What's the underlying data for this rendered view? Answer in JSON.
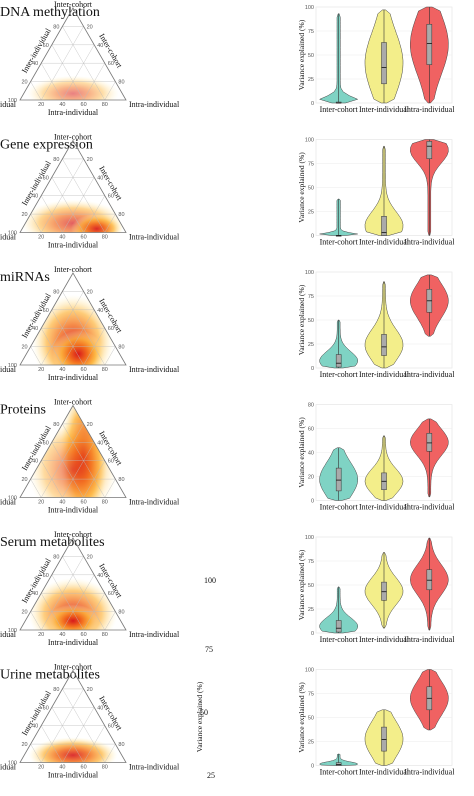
{
  "figure": {
    "panels": [
      {
        "title": "DNA methylation"
      },
      {
        "title": "Gene expression"
      },
      {
        "title": "miRNAs"
      },
      {
        "title": "Proteins"
      },
      {
        "title": "Serum metabolites"
      },
      {
        "title": "Urine metabolites"
      }
    ],
    "ternary_labels": {
      "top": "Inter-cohort",
      "left": "Inter-individual",
      "right": "Intra-individual",
      "bottom": "Intra-individual"
    },
    "ternary_ticks": [
      "20",
      "40",
      "60",
      "80",
      "100"
    ],
    "stray_labels": [
      "100",
      "75",
      "50",
      "25"
    ],
    "legend_label": "Variance explained (%)"
  },
  "chart_data": [
    {
      "type": "violin",
      "title": "DNA methylation",
      "ylabel": "Variance explained (%)",
      "ylim": [
        0,
        100
      ],
      "yticks": [
        0,
        25,
        50,
        75,
        100
      ],
      "categories": [
        "Inter-cohort",
        "Inter-individual",
        "Intra-individual"
      ],
      "colors": [
        "#7fd3c4",
        "#f3ee8a",
        "#f06262"
      ],
      "medians": [
        0,
        37,
        62
      ],
      "q1": [
        0,
        20,
        40
      ],
      "q3": [
        1,
        63,
        82
      ],
      "mins": [
        0,
        0,
        0
      ],
      "maxs": [
        93,
        97,
        100
      ]
    },
    {
      "type": "violin",
      "title": "Gene expression",
      "ylabel": "Variance explained (%)",
      "ylim": [
        0,
        100
      ],
      "yticks": [
        0,
        25,
        50,
        75,
        100
      ],
      "categories": [
        "Inter-cohort",
        "Inter-individual",
        "Intra-individual"
      ],
      "colors": [
        "#7fd3c4",
        "#f3ee8a",
        "#f06262"
      ],
      "medians": [
        0,
        3,
        93
      ],
      "q1": [
        0,
        0,
        80
      ],
      "q3": [
        0,
        20,
        98
      ],
      "mins": [
        0,
        0,
        0
      ],
      "maxs": [
        38,
        93,
        100
      ]
    },
    {
      "type": "violin",
      "title": "miRNAs",
      "ylabel": "Variance explained (%)",
      "ylim": [
        0,
        100
      ],
      "yticks": [
        0,
        25,
        50,
        75,
        100
      ],
      "categories": [
        "Inter-cohort",
        "Inter-individual",
        "Intra-individual"
      ],
      "colors": [
        "#7fd3c4",
        "#f3ee8a",
        "#f06262"
      ],
      "medians": [
        5,
        22,
        70
      ],
      "q1": [
        1,
        13,
        58
      ],
      "q3": [
        14,
        35,
        82
      ],
      "mins": [
        0,
        0,
        33
      ],
      "maxs": [
        50,
        90,
        97
      ]
    },
    {
      "type": "violin",
      "title": "Proteins",
      "ylabel": "Variance explained (%)",
      "ylim": [
        0,
        80
      ],
      "yticks": [
        0,
        20,
        40,
        60,
        80
      ],
      "categories": [
        "Inter-cohort",
        "Inter-individual",
        "Intra-individual"
      ],
      "colors": [
        "#7fd3c4",
        "#f3ee8a",
        "#f06262"
      ],
      "medians": [
        17,
        16,
        48
      ],
      "q1": [
        8,
        9,
        41
      ],
      "q3": [
        27,
        23,
        56
      ],
      "mins": [
        0,
        0,
        3
      ],
      "maxs": [
        44,
        54,
        68
      ]
    },
    {
      "type": "violin",
      "title": "Serum metabolites",
      "ylabel": "Variance explained (%)",
      "ylim": [
        0,
        100
      ],
      "yticks": [
        0,
        25,
        50,
        75,
        100
      ],
      "categories": [
        "Inter-cohort",
        "Inter-individual",
        "Intra-individual"
      ],
      "colors": [
        "#7fd3c4",
        "#f3ee8a",
        "#f06262"
      ],
      "medians": [
        5,
        43,
        55
      ],
      "q1": [
        1,
        34,
        45
      ],
      "q3": [
        13,
        53,
        66
      ],
      "mins": [
        0,
        5,
        3
      ],
      "maxs": [
        48,
        84,
        99
      ]
    },
    {
      "type": "violin",
      "title": "Urine metabolites",
      "ylabel": "Variance explained (%)",
      "ylim": [
        0,
        100
      ],
      "yticks": [
        0,
        25,
        50,
        75,
        100
      ],
      "categories": [
        "Inter-cohort",
        "Inter-individual",
        "Intra-individual"
      ],
      "colors": [
        "#7fd3c4",
        "#f3ee8a",
        "#f06262"
      ],
      "medians": [
        1,
        27,
        70
      ],
      "q1": [
        0,
        15,
        58
      ],
      "q3": [
        3,
        40,
        82
      ],
      "mins": [
        0,
        0,
        37
      ],
      "maxs": [
        12,
        58,
        100
      ]
    }
  ]
}
